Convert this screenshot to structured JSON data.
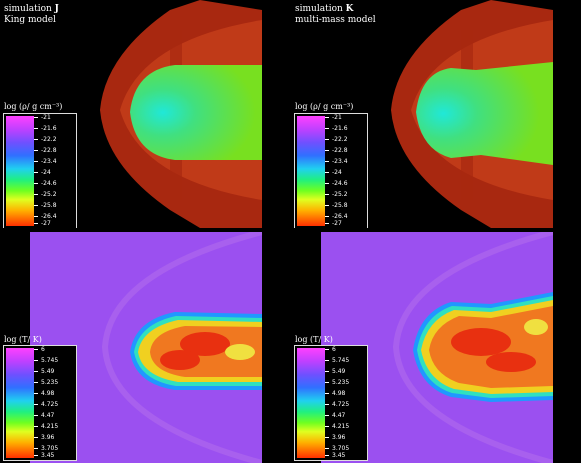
{
  "panels": {
    "j": {
      "title_prefix": "simulation ",
      "title_letter": "J",
      "subtitle": "King model"
    },
    "k": {
      "title_prefix": "simulation ",
      "title_letter": "K",
      "subtitle": "multi-mass model"
    }
  },
  "colorbars": {
    "density": {
      "label": "log (ρ/ g cm⁻³)",
      "ticks": [
        "-21",
        "-21.6",
        "-22.2",
        "-22.8",
        "-23.4",
        "-24",
        "-24.6",
        "-25.2",
        "-25.8",
        "-26.4",
        "-27"
      ]
    },
    "temperature": {
      "label": "log (T/ K)",
      "ticks": [
        "6",
        "5.745",
        "5.49",
        "5.235",
        "4.98",
        "4.725",
        "4.47",
        "4.215",
        "3.96",
        "3.705",
        "3.45"
      ]
    }
  },
  "colors": {
    "background": "#000000",
    "temperature_background": "#9b4ff0",
    "bowshock_outer": "#aa2a10",
    "bowshock_inner": "#c84018",
    "core_green": "#66e020",
    "core_cyan": "#20e8c0",
    "hot_red": "#e83010",
    "hot_yellow": "#f0d020"
  }
}
